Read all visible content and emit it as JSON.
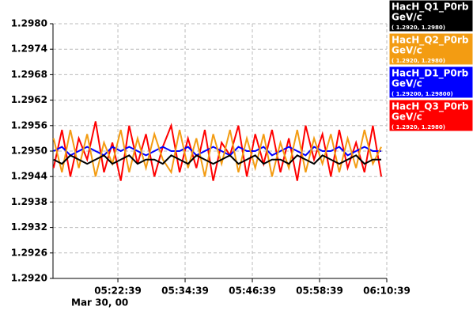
{
  "chart_data": {
    "type": "line",
    "x_label": "Mar 30, 00",
    "xlim": [
      18664,
      22239
    ],
    "xticks": [
      {
        "value": 19359,
        "label": "05:22:39"
      },
      {
        "value": 20079,
        "label": "05:34:39"
      },
      {
        "value": 20799,
        "label": "05:46:39"
      },
      {
        "value": 21519,
        "label": "05:58:39"
      },
      {
        "value": 22239,
        "label": "06:10:39"
      }
    ],
    "ylim": [
      1.292,
      1.298
    ],
    "yticks": [
      {
        "value": 1.298,
        "label": "1.2980"
      },
      1.2974,
      1.2968,
      1.2962,
      1.2956,
      {
        "value": 1.295,
        "label": "1.2950"
      },
      1.2944,
      1.2938,
      1.2932,
      1.2926,
      {
        "value": 1.292,
        "label": "1.2920"
      }
    ],
    "grid": true,
    "legend": "right",
    "x": [
      18670,
      18760,
      18850,
      18940,
      19030,
      19120,
      19210,
      19300,
      19390,
      19480,
      19570,
      19660,
      19750,
      19840,
      19930,
      20020,
      20110,
      20200,
      20290,
      20380,
      20470,
      20560,
      20650,
      20740,
      20830,
      20920,
      21010,
      21100,
      21190,
      21280,
      21370,
      21460,
      21550,
      21640,
      21730,
      21820,
      21910,
      22000,
      22090,
      22180
    ],
    "series": [
      {
        "name": "HacH_Q1_P0rb",
        "unit": "GeV/c",
        "range": "( 1.2920, 1.2980)",
        "color": "#000000",
        "values": [
          1.2948,
          1.2947,
          1.2949,
          1.2948,
          1.2947,
          1.2948,
          1.2949,
          1.2947,
          1.2948,
          1.2949,
          1.2947,
          1.2948,
          1.2948,
          1.2947,
          1.2949,
          1.2948,
          1.2947,
          1.2949,
          1.2948,
          1.2947,
          1.2948,
          1.2949,
          1.2947,
          1.2948,
          1.2949,
          1.2947,
          1.2948,
          1.2948,
          1.2947,
          1.2949,
          1.2948,
          1.2947,
          1.2949,
          1.2948,
          1.2947,
          1.2948,
          1.2949,
          1.2947,
          1.2948,
          1.2948
        ]
      },
      {
        "name": "HacH_Q2_P0rb",
        "unit": "GeV/c",
        "range": "( 1.2920, 1.2980)",
        "color": "#f39c12",
        "values": [
          1.2953,
          1.2945,
          1.2955,
          1.2946,
          1.2954,
          1.2944,
          1.2952,
          1.2947,
          1.2955,
          1.2945,
          1.2953,
          1.2946,
          1.2954,
          1.2948,
          1.2945,
          1.2955,
          1.2946,
          1.2953,
          1.2944,
          1.2954,
          1.2947,
          1.2955,
          1.2945,
          1.2953,
          1.2946,
          1.2954,
          1.2944,
          1.2952,
          1.2946,
          1.2955,
          1.2945,
          1.2953,
          1.2947,
          1.2954,
          1.2945,
          1.2953,
          1.2946,
          1.2955,
          1.2947,
          1.2951
        ]
      },
      {
        "name": "HacH_D1_P0rb",
        "unit": "GeV/c",
        "range": "( 1.29200, 1.29800)",
        "color": "#0000ff",
        "values": [
          1.295,
          1.2951,
          1.2949,
          1.295,
          1.2951,
          1.295,
          1.2949,
          1.2951,
          1.295,
          1.2951,
          1.295,
          1.2949,
          1.295,
          1.2951,
          1.295,
          1.295,
          1.2951,
          1.2949,
          1.295,
          1.2951,
          1.295,
          1.2949,
          1.2951,
          1.295,
          1.295,
          1.2951,
          1.2949,
          1.295,
          1.2951,
          1.295,
          1.2949,
          1.2951,
          1.295,
          1.295,
          1.2951,
          1.2949,
          1.295,
          1.2951,
          1.295,
          1.295
        ]
      },
      {
        "name": "HacH_Q3_P0rb",
        "unit": "GeV/c",
        "range": "( 1.2920, 1.2980)",
        "color": "#ff0000",
        "values": [
          1.2946,
          1.2955,
          1.2944,
          1.2953,
          1.2948,
          1.2957,
          1.2945,
          1.2952,
          1.2943,
          1.2956,
          1.2947,
          1.2954,
          1.2944,
          1.2951,
          1.2956,
          1.2945,
          1.2953,
          1.2946,
          1.2955,
          1.2943,
          1.2952,
          1.2949,
          1.2956,
          1.2944,
          1.2954,
          1.2947,
          1.2955,
          1.2945,
          1.2953,
          1.2943,
          1.2956,
          1.2948,
          1.2954,
          1.2944,
          1.2955,
          1.2946,
          1.2952,
          1.2945,
          1.2956,
          1.2944
        ]
      }
    ]
  }
}
